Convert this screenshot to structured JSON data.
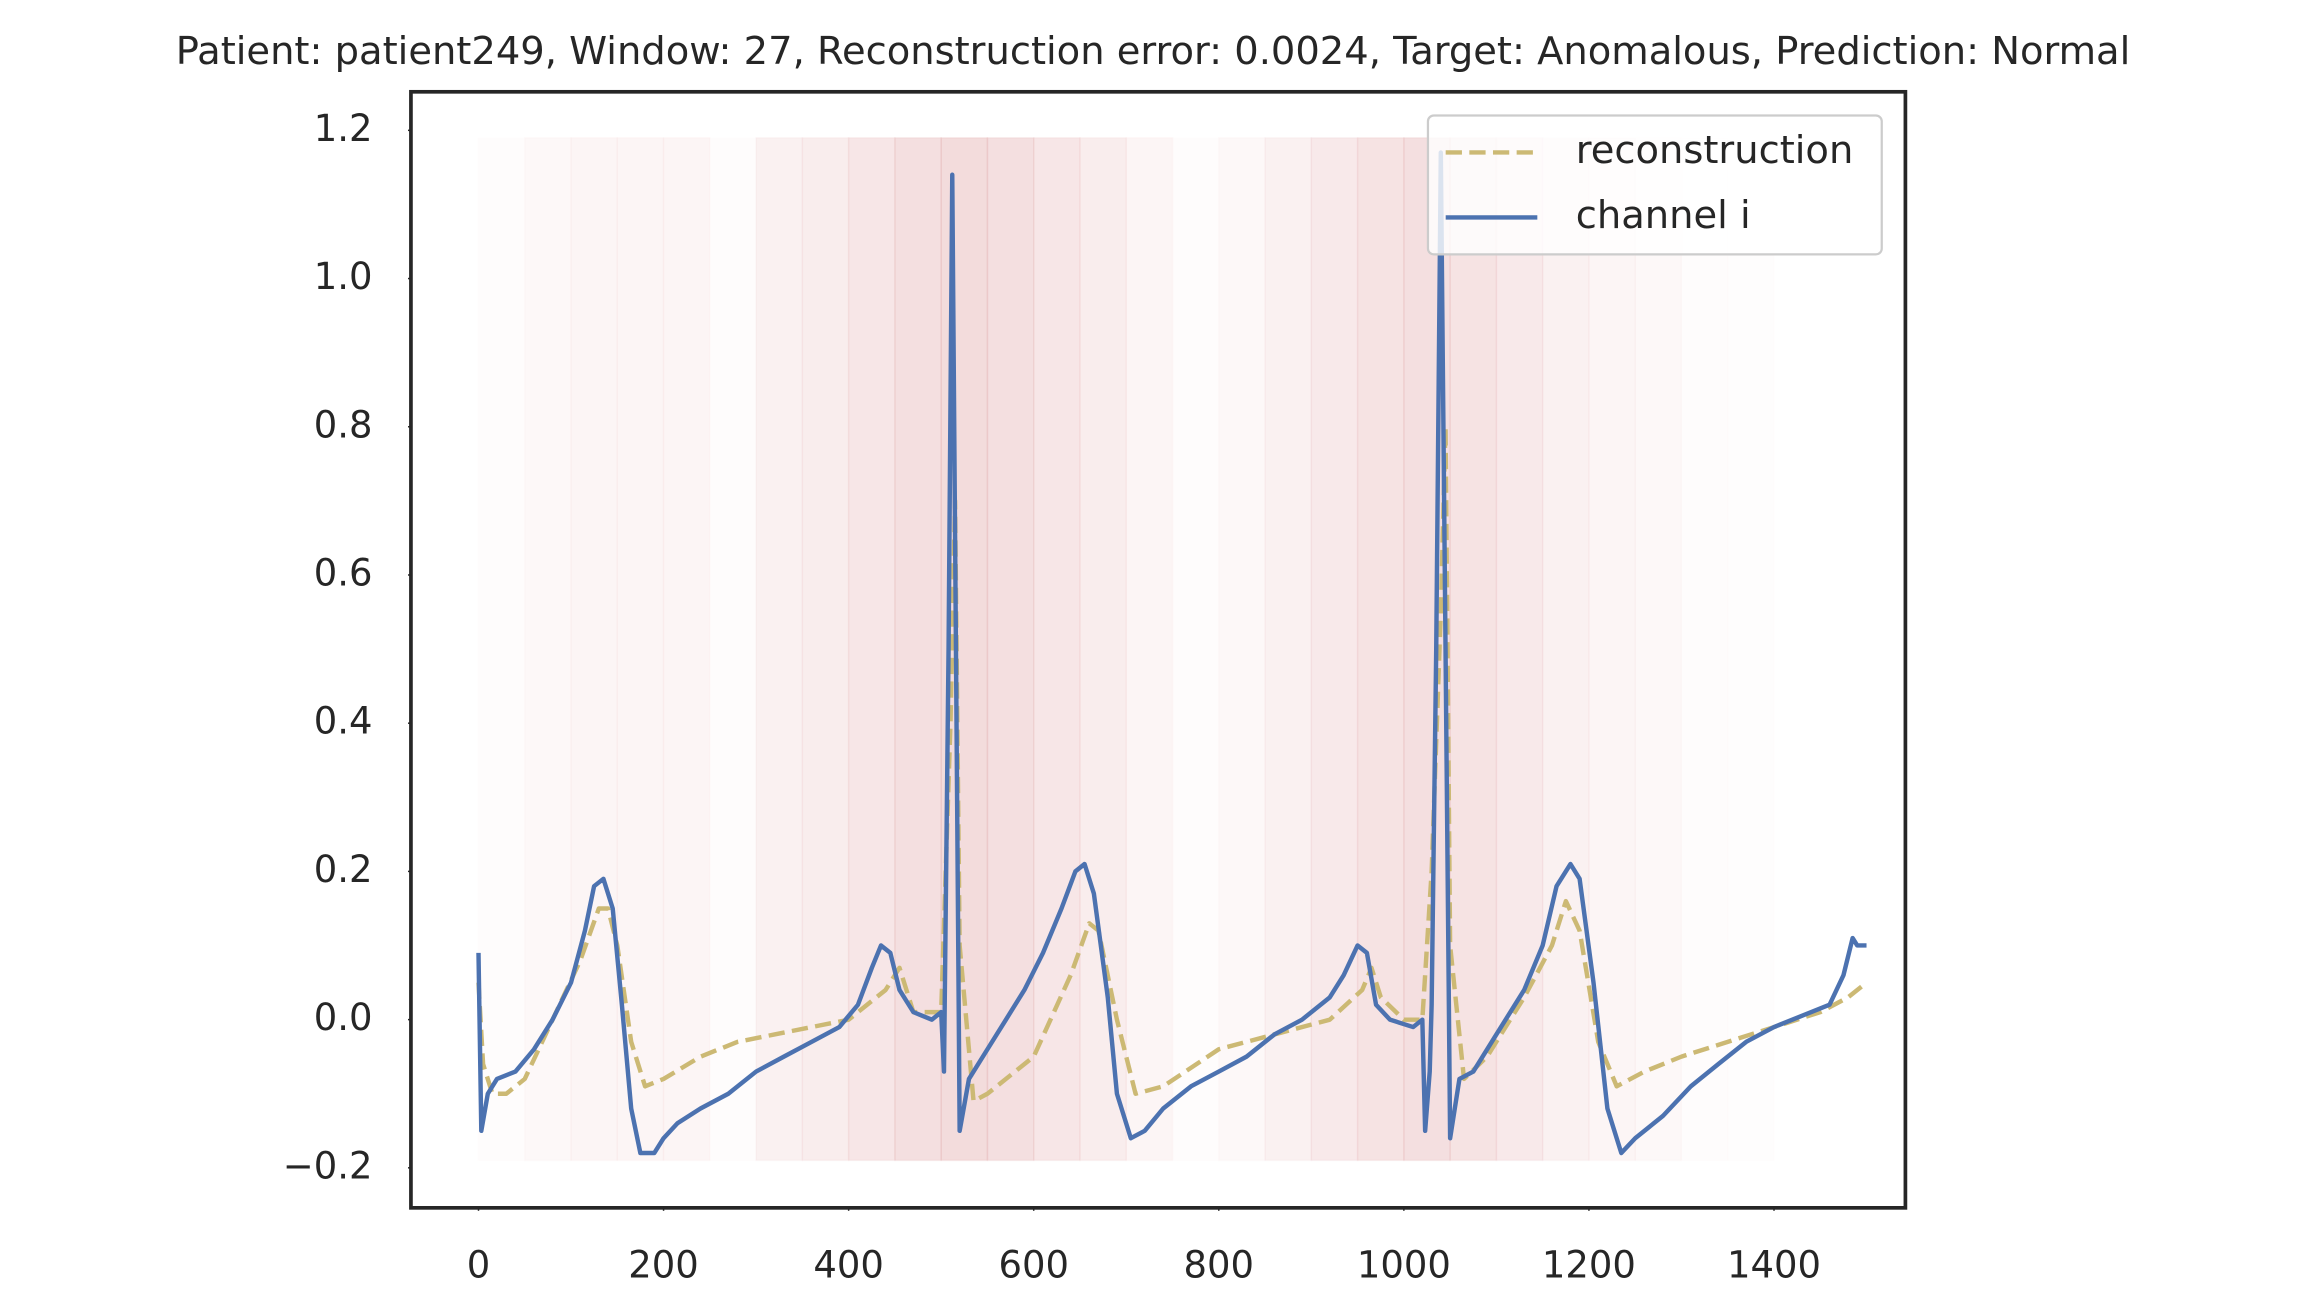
{
  "chart_data": {
    "type": "line",
    "title": "Patient: patient249, Window: 27, Reconstruction error: 0.0024, Target: Anomalous, Prediction: Normal",
    "xlim": [
      -73,
      1542
    ],
    "ylim": [
      -0.254,
      1.252
    ],
    "xticks": [
      0,
      200,
      400,
      600,
      800,
      1000,
      1200,
      1400
    ],
    "yticks": [
      {
        "value": -0.2,
        "label": "−0.2"
      },
      {
        "value": 0,
        "label": "0.0"
      },
      0.2,
      0.4,
      0.6,
      0.8,
      {
        "value": 1,
        "label": "1.0"
      },
      1.2
    ],
    "grid": false,
    "legend": "upper right",
    "band_color": "#c44e52",
    "band_ylim": [
      -0.19,
      1.19
    ],
    "band_edges": [
      0,
      50,
      100,
      150,
      200,
      250,
      300,
      350,
      400,
      450,
      500,
      550,
      600,
      650,
      700,
      750,
      800,
      850,
      900,
      950,
      1000,
      1050,
      1100,
      1150,
      1200,
      1250,
      1300,
      1350,
      1400
    ],
    "band_intensity": [
      0.05,
      0.1,
      0.15,
      0.15,
      0.15,
      0.05,
      0.2,
      0.25,
      0.35,
      0.45,
      0.5,
      0.45,
      0.35,
      0.25,
      0.15,
      0.05,
      0.1,
      0.2,
      0.3,
      0.4,
      0.45,
      0.4,
      0.3,
      0.2,
      0.15,
      0.1,
      0.05,
      0.03
    ],
    "series": [
      {
        "name": "reconstruction",
        "color": "#ccb974",
        "dash": true,
        "x": [
          0,
          5,
          15,
          30,
          50,
          80,
          110,
          130,
          140,
          150,
          165,
          180,
          200,
          240,
          280,
          320,
          360,
          400,
          420,
          440,
          455,
          470,
          500,
          510,
          515,
          520,
          535,
          550,
          600,
          640,
          660,
          670,
          690,
          710,
          740,
          800,
          860,
          920,
          955,
          965,
          975,
          1000,
          1020,
          1030,
          1040,
          1045,
          1050,
          1065,
          1090,
          1130,
          1160,
          1175,
          1190,
          1210,
          1230,
          1260,
          1300,
          1350,
          1400,
          1450,
          1480,
          1500
        ],
        "values": [
          0.05,
          -0.06,
          -0.1,
          -0.1,
          -0.08,
          0,
          0.08,
          0.15,
          0.15,
          0.1,
          -0.03,
          -0.09,
          -0.08,
          -0.05,
          -0.03,
          -0.02,
          -0.01,
          0,
          0.02,
          0.04,
          0.07,
          0.01,
          0.01,
          0.4,
          0.7,
          0.1,
          -0.11,
          -0.1,
          -0.05,
          0.06,
          0.13,
          0.12,
          0,
          -0.1,
          -0.09,
          -0.04,
          -0.02,
          0,
          0.04,
          0.07,
          0.03,
          0,
          0,
          0.2,
          0.55,
          0.8,
          0.1,
          -0.08,
          -0.05,
          0.03,
          0.1,
          0.16,
          0.12,
          -0.03,
          -0.09,
          -0.07,
          -0.05,
          -0.03,
          -0.01,
          0.01,
          0.03,
          0.05
        ]
      },
      {
        "name": "channel i",
        "color": "#4c72b0",
        "dash": false,
        "x": [
          0,
          3,
          10,
          20,
          40,
          60,
          80,
          100,
          115,
          125,
          135,
          145,
          155,
          165,
          175,
          190,
          200,
          215,
          240,
          270,
          300,
          330,
          360,
          390,
          410,
          425,
          435,
          445,
          455,
          470,
          490,
          500,
          503,
          508,
          512,
          516,
          520,
          530,
          545,
          570,
          590,
          610,
          630,
          645,
          655,
          665,
          680,
          690,
          705,
          720,
          740,
          770,
          800,
          830,
          860,
          890,
          920,
          935,
          950,
          960,
          970,
          985,
          1010,
          1020,
          1023,
          1028,
          1030,
          1035,
          1040,
          1045,
          1050,
          1060,
          1075,
          1100,
          1130,
          1150,
          1165,
          1180,
          1190,
          1205,
          1220,
          1235,
          1250,
          1280,
          1310,
          1340,
          1370,
          1400,
          1440,
          1460,
          1475,
          1485,
          1490,
          1500
        ],
        "values": [
          0.09,
          -0.15,
          -0.1,
          -0.08,
          -0.07,
          -0.04,
          0,
          0.05,
          0.12,
          0.18,
          0.19,
          0.15,
          0.02,
          -0.12,
          -0.18,
          -0.18,
          -0.16,
          -0.14,
          -0.12,
          -0.1,
          -0.07,
          -0.05,
          -0.03,
          -0.01,
          0.02,
          0.07,
          0.1,
          0.09,
          0.04,
          0.01,
          0,
          0.01,
          -0.07,
          0.5,
          1.14,
          0.5,
          -0.15,
          -0.08,
          -0.05,
          0,
          0.04,
          0.09,
          0.15,
          0.2,
          0.21,
          0.17,
          0.03,
          -0.1,
          -0.16,
          -0.15,
          -0.12,
          -0.09,
          -0.07,
          -0.05,
          -0.02,
          0,
          0.03,
          0.06,
          0.1,
          0.09,
          0.02,
          0,
          -0.01,
          0,
          -0.15,
          -0.07,
          0.02,
          0.5,
          1.17,
          0.5,
          -0.16,
          -0.08,
          -0.07,
          -0.02,
          0.04,
          0.1,
          0.18,
          0.21,
          0.19,
          0.05,
          -0.12,
          -0.18,
          -0.16,
          -0.13,
          -0.09,
          -0.06,
          -0.03,
          -0.01,
          0.01,
          0.02,
          0.06,
          0.11,
          0.1,
          0.1
        ]
      }
    ]
  }
}
